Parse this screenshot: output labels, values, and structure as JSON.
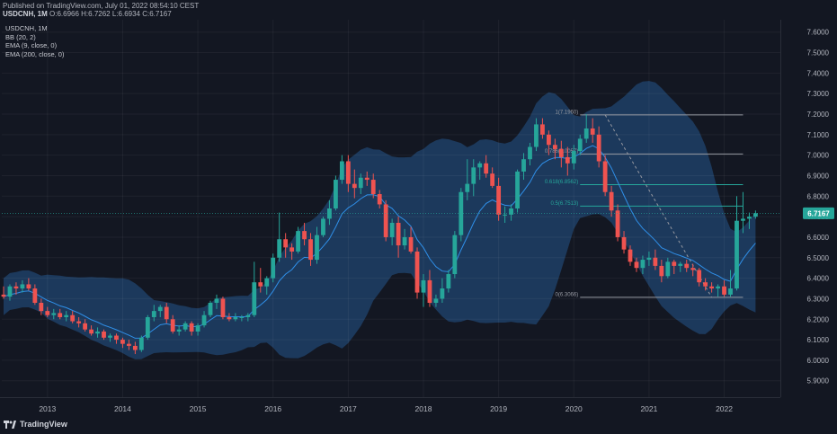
{
  "header": {
    "published": "Published on TradingView.com, July 01, 2022 08:54:10 CEST",
    "symbol": "USDCNH, 1M",
    "ohlc_text": "O:6.6966 H:6.7262 L:6.6934 C:6.7167"
  },
  "legend": {
    "symbol": "USDCNH, 1M",
    "bb": "BB (20, 2)",
    "ema9": "EMA (9, close, 0)",
    "ema200": "EMA (200, close, 0)"
  },
  "footer": {
    "brand": "TradingView"
  },
  "colors": {
    "background": "#131722",
    "up": "#26a69a",
    "down": "#ef5350",
    "bands_fill": "#1e3f66",
    "ema": "#2f8fe8",
    "fib_line": "#9598a1",
    "last_price_bg": "#26a69a"
  },
  "chart_data": {
    "type": "candlestick",
    "title": "USDCNH, 1M",
    "ylim": [
      5.82,
      7.66
    ],
    "y_ticks": [
      "7.6000",
      "7.5000",
      "7.4000",
      "7.3000",
      "7.2000",
      "7.1000",
      "7.0000",
      "6.9000",
      "6.8000",
      "6.7000",
      "6.6000",
      "6.5000",
      "6.4000",
      "6.3000",
      "6.2000",
      "6.1000",
      "6.0000",
      "5.9000"
    ],
    "x_ticks": [
      {
        "label": "2013",
        "index": 7
      },
      {
        "label": "2014",
        "index": 19
      },
      {
        "label": "2015",
        "index": 31
      },
      {
        "label": "2016",
        "index": 43
      },
      {
        "label": "2017",
        "index": 55
      },
      {
        "label": "2018",
        "index": 67
      },
      {
        "label": "2019",
        "index": 79
      },
      {
        "label": "2020",
        "index": 91
      },
      {
        "label": "2021",
        "index": 103
      },
      {
        "label": "2022",
        "index": 115
      }
    ],
    "last_price": "6.7167",
    "candles": [
      [
        6.32,
        6.36,
        6.3,
        6.31
      ],
      [
        6.31,
        6.37,
        6.29,
        6.36
      ],
      [
        6.36,
        6.38,
        6.32,
        6.35
      ],
      [
        6.35,
        6.39,
        6.33,
        6.37
      ],
      [
        6.37,
        6.4,
        6.34,
        6.35
      ],
      [
        6.35,
        6.37,
        6.27,
        6.28
      ],
      [
        6.28,
        6.3,
        6.22,
        6.24
      ],
      [
        6.24,
        6.26,
        6.21,
        6.22
      ],
      [
        6.22,
        6.25,
        6.2,
        6.23
      ],
      [
        6.23,
        6.25,
        6.2,
        6.21
      ],
      [
        6.21,
        6.24,
        6.19,
        6.22
      ],
      [
        6.22,
        6.24,
        6.18,
        6.19
      ],
      [
        6.19,
        6.21,
        6.16,
        6.18
      ],
      [
        6.18,
        6.2,
        6.14,
        6.15
      ],
      [
        6.15,
        6.17,
        6.12,
        6.13
      ],
      [
        6.13,
        6.16,
        6.11,
        6.14
      ],
      [
        6.14,
        6.15,
        6.1,
        6.11
      ],
      [
        6.11,
        6.13,
        6.09,
        6.12
      ],
      [
        6.12,
        6.13,
        6.08,
        6.1
      ],
      [
        6.1,
        6.11,
        6.06,
        6.08
      ],
      [
        6.08,
        6.1,
        6.05,
        6.07
      ],
      [
        6.07,
        6.09,
        6.03,
        6.05
      ],
      [
        6.05,
        6.12,
        6.04,
        6.11
      ],
      [
        6.11,
        6.22,
        6.1,
        6.21
      ],
      [
        6.21,
        6.27,
        6.19,
        6.24
      ],
      [
        6.24,
        6.27,
        6.21,
        6.26
      ],
      [
        6.26,
        6.28,
        6.18,
        6.2
      ],
      [
        6.2,
        6.22,
        6.13,
        6.14
      ],
      [
        6.14,
        6.17,
        6.12,
        6.15
      ],
      [
        6.15,
        6.19,
        6.14,
        6.18
      ],
      [
        6.18,
        6.19,
        6.12,
        6.14
      ],
      [
        6.14,
        6.18,
        6.12,
        6.17
      ],
      [
        6.17,
        6.24,
        6.16,
        6.22
      ],
      [
        6.22,
        6.29,
        6.21,
        6.28
      ],
      [
        6.28,
        6.32,
        6.25,
        6.3
      ],
      [
        6.3,
        6.31,
        6.2,
        6.21
      ],
      [
        6.21,
        6.23,
        6.19,
        6.2
      ],
      [
        6.2,
        6.23,
        6.19,
        6.21
      ],
      [
        6.21,
        6.22,
        6.19,
        6.21
      ],
      [
        6.21,
        6.23,
        6.19,
        6.22
      ],
      [
        6.22,
        6.48,
        6.21,
        6.38
      ],
      [
        6.38,
        6.45,
        6.33,
        6.36
      ],
      [
        6.36,
        6.41,
        6.32,
        6.4
      ],
      [
        6.4,
        6.52,
        6.38,
        6.5
      ],
      [
        6.5,
        6.72,
        6.48,
        6.59
      ],
      [
        6.59,
        6.62,
        6.5,
        6.55
      ],
      [
        6.55,
        6.57,
        6.49,
        6.53
      ],
      [
        6.53,
        6.65,
        6.52,
        6.63
      ],
      [
        6.63,
        6.67,
        6.56,
        6.59
      ],
      [
        6.59,
        6.62,
        6.46,
        6.49
      ],
      [
        6.49,
        6.65,
        6.47,
        6.61
      ],
      [
        6.61,
        6.7,
        6.6,
        6.69
      ],
      [
        6.69,
        6.78,
        6.66,
        6.74
      ],
      [
        6.74,
        6.9,
        6.73,
        6.88
      ],
      [
        6.88,
        7.0,
        6.86,
        6.97
      ],
      [
        6.97,
        7.0,
        6.82,
        6.86
      ],
      [
        6.86,
        6.93,
        6.79,
        6.84
      ],
      [
        6.84,
        6.91,
        6.81,
        6.89
      ],
      [
        6.89,
        6.92,
        6.85,
        6.88
      ],
      [
        6.88,
        6.91,
        6.79,
        6.81
      ],
      [
        6.81,
        6.83,
        6.74,
        6.76
      ],
      [
        6.76,
        6.78,
        6.58,
        6.6
      ],
      [
        6.6,
        6.69,
        6.56,
        6.67
      ],
      [
        6.67,
        6.7,
        6.5,
        6.56
      ],
      [
        6.56,
        6.64,
        6.54,
        6.6
      ],
      [
        6.6,
        6.65,
        6.52,
        6.53
      ],
      [
        6.53,
        6.55,
        6.3,
        6.33
      ],
      [
        6.33,
        6.42,
        6.26,
        6.39
      ],
      [
        6.39,
        6.44,
        6.26,
        6.28
      ],
      [
        6.28,
        6.32,
        6.26,
        6.3
      ],
      [
        6.3,
        6.4,
        6.28,
        6.35
      ],
      [
        6.35,
        6.44,
        6.33,
        6.42
      ],
      [
        6.42,
        6.63,
        6.4,
        6.61
      ],
      [
        6.61,
        6.84,
        6.58,
        6.82
      ],
      [
        6.82,
        6.98,
        6.78,
        6.86
      ],
      [
        6.86,
        6.98,
        6.8,
        6.94
      ],
      [
        6.94,
        6.97,
        6.88,
        6.96
      ],
      [
        6.96,
        7.0,
        6.89,
        6.91
      ],
      [
        6.91,
        6.94,
        6.84,
        6.85
      ],
      [
        6.85,
        6.89,
        6.68,
        6.71
      ],
      [
        6.71,
        6.75,
        6.67,
        6.71
      ],
      [
        6.71,
        6.76,
        6.68,
        6.74
      ],
      [
        6.74,
        6.93,
        6.72,
        6.92
      ],
      [
        6.92,
        7.01,
        6.88,
        6.98
      ],
      [
        6.98,
        7.06,
        6.95,
        7.04
      ],
      [
        7.04,
        7.18,
        7.02,
        7.15
      ],
      [
        7.15,
        7.18,
        7.08,
        7.1
      ],
      [
        7.1,
        7.12,
        7.0,
        7.05
      ],
      [
        7.05,
        7.08,
        6.98,
        7.03
      ],
      [
        7.03,
        7.07,
        6.94,
        6.99
      ],
      [
        6.99,
        7.04,
        6.9,
        6.96
      ],
      [
        6.96,
        7.05,
        6.93,
        7.02
      ],
      [
        7.02,
        7.1,
        7.0,
        7.08
      ],
      [
        7.08,
        7.2,
        7.06,
        7.13
      ],
      [
        7.13,
        7.18,
        7.06,
        7.1
      ],
      [
        7.1,
        7.14,
        6.94,
        6.97
      ],
      [
        6.97,
        7.0,
        6.8,
        6.82
      ],
      [
        6.82,
        6.85,
        6.7,
        6.73
      ],
      [
        6.73,
        6.76,
        6.58,
        6.6
      ],
      [
        6.6,
        6.63,
        6.52,
        6.54
      ],
      [
        6.54,
        6.56,
        6.46,
        6.48
      ],
      [
        6.48,
        6.5,
        6.43,
        6.45
      ],
      [
        6.45,
        6.51,
        6.42,
        6.49
      ],
      [
        6.49,
        6.53,
        6.46,
        6.5
      ],
      [
        6.5,
        6.54,
        6.44,
        6.46
      ],
      [
        6.46,
        6.49,
        6.38,
        6.41
      ],
      [
        6.41,
        6.5,
        6.4,
        6.48
      ],
      [
        6.48,
        6.49,
        6.42,
        6.46
      ],
      [
        6.46,
        6.48,
        6.43,
        6.47
      ],
      [
        6.47,
        6.49,
        6.43,
        6.45
      ],
      [
        6.45,
        6.47,
        6.41,
        6.44
      ],
      [
        6.44,
        6.45,
        6.36,
        6.38
      ],
      [
        6.38,
        6.4,
        6.34,
        6.36
      ],
      [
        6.36,
        6.38,
        6.33,
        6.35
      ],
      [
        6.35,
        6.37,
        6.31,
        6.36
      ],
      [
        6.36,
        6.39,
        6.31,
        6.32
      ],
      [
        6.32,
        6.44,
        6.31,
        6.35
      ],
      [
        6.35,
        6.8,
        6.34,
        6.68
      ],
      [
        6.68,
        6.82,
        6.62,
        6.69
      ],
      [
        6.69,
        6.72,
        6.64,
        6.7
      ],
      [
        6.7,
        6.73,
        6.69,
        6.7167
      ]
    ],
    "fib_levels": [
      {
        "label": "1(7.1960)",
        "value": 7.196
      },
      {
        "label": "0.786(7.0057)",
        "value": 7.0057
      },
      {
        "label": "0.618(6.8562)",
        "value": 6.8562
      },
      {
        "label": "0.5(6.7513)",
        "value": 6.7513
      },
      {
        "label": "0(6.3066)",
        "value": 6.3066
      }
    ],
    "series": [
      {
        "name": "BB (20, 2)"
      },
      {
        "name": "EMA (9, close, 0)"
      },
      {
        "name": "EMA (200, close, 0)"
      }
    ]
  }
}
